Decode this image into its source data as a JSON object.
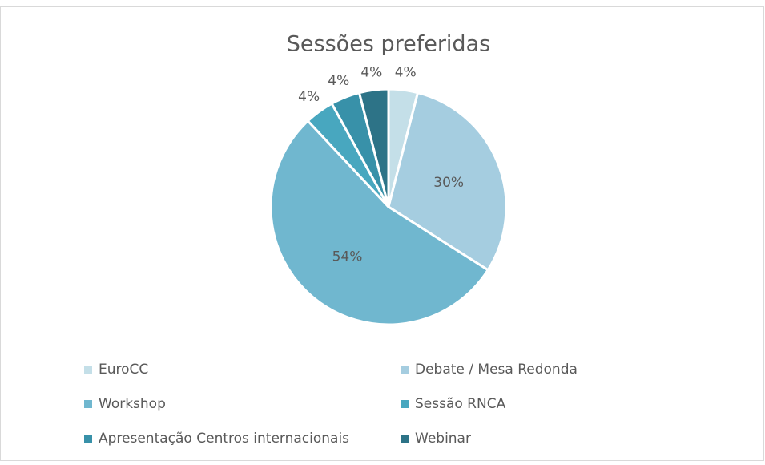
{
  "chart_data": {
    "type": "pie",
    "title": "Sessões preferidas",
    "categories": [
      "EuroCC",
      "Debate / Mesa Redonda",
      "Workshop",
      "Sessão RNCA",
      "Apresentação Centros internacionais",
      "Webinar"
    ],
    "values": [
      4,
      30,
      54,
      4,
      4,
      4
    ],
    "value_labels": [
      "4%",
      "30%",
      "54%",
      "4%",
      "4%",
      "4%"
    ],
    "colors": [
      "#c4dfe8",
      "#a5cde0",
      "#70b7cf",
      "#48a7bf",
      "#3891a9",
      "#2d7387"
    ],
    "legend": "bottom"
  }
}
